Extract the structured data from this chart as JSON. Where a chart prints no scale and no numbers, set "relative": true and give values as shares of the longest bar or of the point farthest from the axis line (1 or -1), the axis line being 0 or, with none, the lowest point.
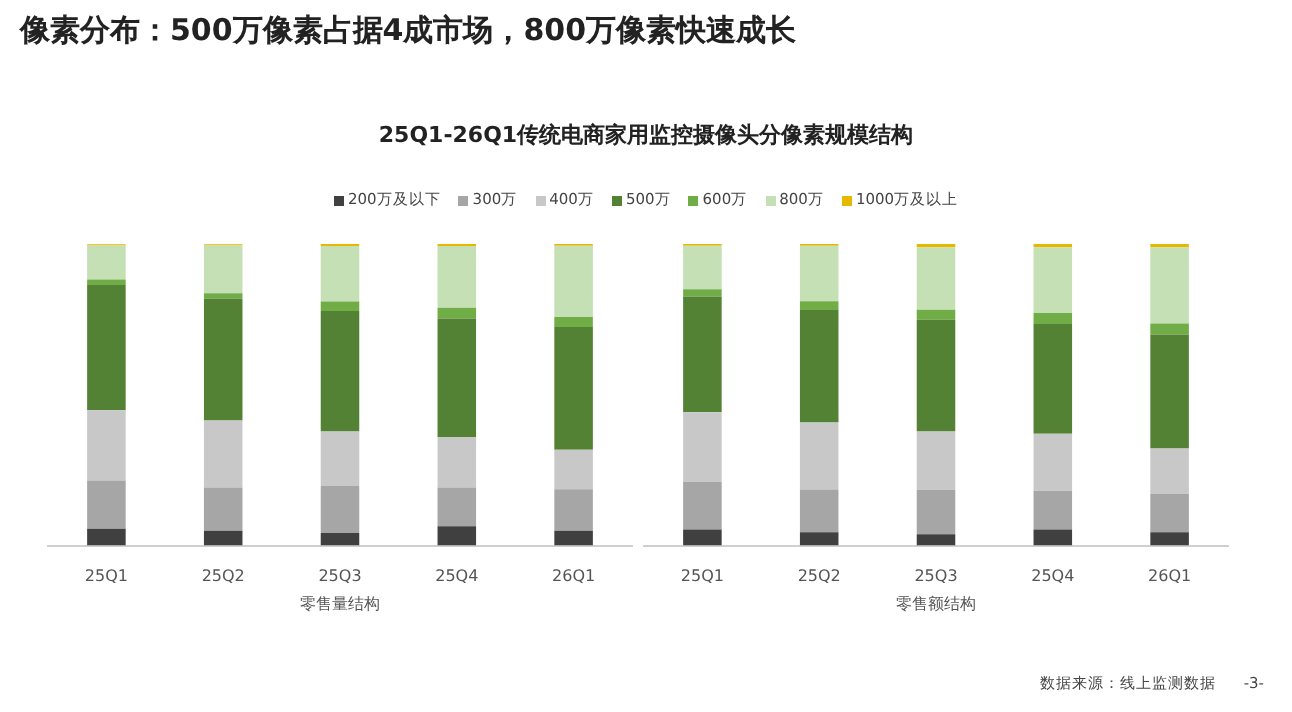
{
  "chart_data": [
    {
      "type": "bar",
      "title": "像素分布：500万像素占据4成市场，800万像素快速成长",
      "subtitle": "25Q1-26Q1传统电商家用监控摄像头分像素规模结构",
      "categories": [
        "25Q1",
        "25Q2",
        "25Q3",
        "25Q4",
        "26Q1"
      ],
      "xlabel": "零售量结构",
      "stacked": true,
      "relative": true,
      "legend": "top",
      "series": [
        {
          "name": "200万及以下",
          "color": "#404040",
          "values": [
            0.056,
            0.049,
            0.042,
            0.064,
            0.049
          ]
        },
        {
          "name": "300万",
          "color": "#a6a6a6",
          "values": [
            0.16,
            0.144,
            0.156,
            0.129,
            0.138
          ]
        },
        {
          "name": "400万",
          "color": "#c8c8c8",
          "values": [
            0.233,
            0.222,
            0.18,
            0.167,
            0.131
          ]
        },
        {
          "name": "500万",
          "color": "#548235",
          "values": [
            0.415,
            0.404,
            0.4,
            0.393,
            0.407
          ]
        },
        {
          "name": "600万",
          "color": "#70ad47",
          "values": [
            0.018,
            0.018,
            0.031,
            0.036,
            0.033
          ]
        },
        {
          "name": "800万",
          "color": "#c5e0b4",
          "values": [
            0.113,
            0.158,
            0.184,
            0.204,
            0.236
          ]
        },
        {
          "name": "1000万及以上",
          "color": "#e6b800",
          "values": [
            0.004,
            0.004,
            0.007,
            0.007,
            0.006
          ]
        }
      ]
    },
    {
      "type": "bar",
      "categories": [
        "25Q1",
        "25Q2",
        "25Q3",
        "25Q4",
        "26Q1"
      ],
      "xlabel": "零售额结构",
      "stacked": true,
      "relative": true,
      "annotations": [
        "数据来源：线上监测数据",
        "-3-"
      ],
      "series": [
        {
          "color": "#404040",
          "values": [
            0.053,
            0.044,
            0.038,
            0.053,
            0.044
          ]
        },
        {
          "color": "#a6a6a6",
          "values": [
            0.158,
            0.142,
            0.147,
            0.129,
            0.127
          ]
        },
        {
          "color": "#c8c8c8",
          "values": [
            0.231,
            0.222,
            0.193,
            0.189,
            0.151
          ]
        },
        {
          "color": "#548235",
          "values": [
            0.384,
            0.373,
            0.371,
            0.364,
            0.378
          ]
        },
        {
          "color": "#70ad47",
          "values": [
            0.024,
            0.029,
            0.033,
            0.036,
            0.036
          ]
        },
        {
          "color": "#c5e0b4",
          "values": [
            0.144,
            0.184,
            0.207,
            0.218,
            0.253
          ]
        },
        {
          "color": "#e6b800",
          "values": [
            0.006,
            0.006,
            0.011,
            0.011,
            0.011
          ]
        }
      ]
    }
  ]
}
